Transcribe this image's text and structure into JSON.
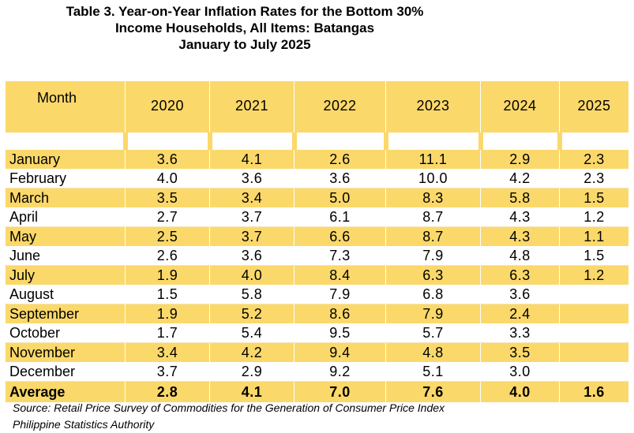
{
  "title": {
    "line1": "Table 3. Year-on-Year Inflation Rates for the Bottom 30%",
    "line2": "Income Households, All Items:  Batangas",
    "line3": "January to July 2025"
  },
  "table": {
    "month_header": "Month",
    "years": [
      "2020",
      "2021",
      "2022",
      "2023",
      "2024",
      "2025"
    ],
    "rows": [
      {
        "month": "January",
        "values": [
          "3.6",
          "4.1",
          "2.6",
          "11.1",
          "2.9",
          "2.3"
        ]
      },
      {
        "month": "February",
        "values": [
          "4.0",
          "3.6",
          "3.6",
          "10.0",
          "4.2",
          "2.3"
        ]
      },
      {
        "month": "March",
        "values": [
          "3.5",
          "3.4",
          "5.0",
          "8.3",
          "5.8",
          "1.5"
        ]
      },
      {
        "month": "April",
        "values": [
          "2.7",
          "3.7",
          "6.1",
          "8.7",
          "4.3",
          "1.2"
        ]
      },
      {
        "month": "May",
        "values": [
          "2.5",
          "3.7",
          "6.6",
          "8.7",
          "4.3",
          "1.1"
        ]
      },
      {
        "month": "June",
        "values": [
          "2.6",
          "3.6",
          "7.3",
          "7.9",
          "4.8",
          "1.5"
        ]
      },
      {
        "month": "July",
        "values": [
          "1.9",
          "4.0",
          "8.4",
          "6.3",
          "6.3",
          "1.2"
        ]
      },
      {
        "month": "August",
        "values": [
          "1.5",
          "5.8",
          "7.9",
          "6.8",
          "3.6",
          ""
        ]
      },
      {
        "month": "September",
        "values": [
          "1.9",
          "5.2",
          "8.6",
          "7.9",
          "2.4",
          ""
        ]
      },
      {
        "month": "October",
        "values": [
          "1.7",
          "5.4",
          "9.5",
          "5.7",
          "3.3",
          ""
        ]
      },
      {
        "month": "November",
        "values": [
          "3.4",
          "4.2",
          "9.4",
          "4.8",
          "3.5",
          ""
        ]
      },
      {
        "month": "December",
        "values": [
          "3.7",
          "2.9",
          "9.2",
          "5.1",
          "3.0",
          ""
        ]
      }
    ],
    "average": {
      "label": "Average",
      "values": [
        "2.8",
        "4.1",
        "7.0",
        "7.6",
        "4.0",
        "1.6"
      ]
    }
  },
  "source": {
    "line1": "Source: Retail Price Survey of Commodities for the Generation of Consumer Price Index",
    "line2": "Philippine Statistics Authority"
  },
  "colors": {
    "band": "#fbd86a",
    "background": "#ffffff"
  }
}
